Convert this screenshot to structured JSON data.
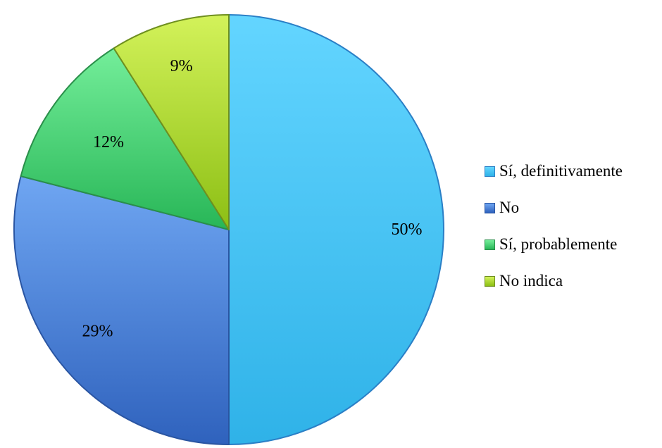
{
  "chart_data": {
    "type": "pie",
    "title": "",
    "slices": [
      {
        "label": "Sí, definitivamente",
        "value": 50,
        "display": "50%"
      },
      {
        "label": "No",
        "value": 29,
        "display": "29%"
      },
      {
        "label": "Sí, probablemente",
        "value": 12,
        "display": "12%"
      },
      {
        "label": "No indica",
        "value": 9,
        "display": "9%"
      }
    ],
    "legend_position": "right",
    "start_angle": "12 o'clock",
    "direction": "clockwise",
    "colors": {
      "Sí, definitivamente": {
        "light": "#63d5ff",
        "dark": "#2fb2e8",
        "edge": "#2a7fc6"
      },
      "No": {
        "light": "#6fa6f2",
        "dark": "#2f62bd",
        "edge": "#2a55a2"
      },
      "Sí, probablemente": {
        "light": "#74ee9a",
        "dark": "#28b657",
        "edge": "#2a8f4a"
      },
      "No indica": {
        "light": "#d3f25a",
        "dark": "#8cbf14",
        "edge": "#6f8f1f"
      }
    }
  }
}
